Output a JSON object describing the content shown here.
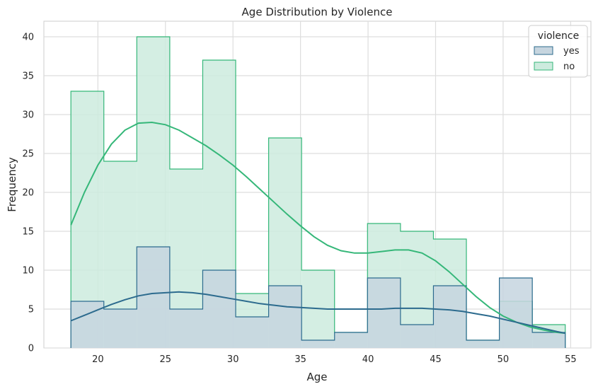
{
  "chart_data": {
    "type": "histogram",
    "title": "Age Distribution by Violence",
    "xlabel": "Age",
    "ylabel": "Frequency",
    "xlim": [
      16,
      56.5
    ],
    "ylim": [
      0,
      42
    ],
    "x_ticks": [
      20,
      25,
      30,
      35,
      40,
      45,
      50,
      55
    ],
    "y_ticks": [
      0,
      5,
      10,
      15,
      20,
      25,
      30,
      35,
      40
    ],
    "bin_edges": [
      18,
      20.44,
      22.88,
      25.32,
      27.76,
      30.2,
      32.64,
      35.08,
      37.52,
      39.96,
      42.4,
      44.84,
      47.28,
      49.72,
      52.16,
      54.6
    ],
    "grid": true,
    "legend": {
      "title": "violence",
      "placement": "top-right"
    },
    "series": [
      {
        "name": "no",
        "values": [
          33,
          24,
          40,
          23,
          37,
          7,
          27,
          10,
          2,
          16,
          15,
          14,
          1,
          6,
          3
        ],
        "color": "#35b779",
        "fill_color": "#cdebde",
        "kde": [
          [
            18,
            15.8
          ],
          [
            19,
            20
          ],
          [
            20,
            23.5
          ],
          [
            21,
            26.2
          ],
          [
            22,
            28
          ],
          [
            23,
            28.9
          ],
          [
            24,
            29
          ],
          [
            25,
            28.7
          ],
          [
            26,
            28
          ],
          [
            27,
            27
          ],
          [
            28,
            26
          ],
          [
            29,
            24.8
          ],
          [
            30,
            23.5
          ],
          [
            31,
            22
          ],
          [
            32,
            20.4
          ],
          [
            33,
            18.8
          ],
          [
            34,
            17.2
          ],
          [
            35,
            15.7
          ],
          [
            36,
            14.3
          ],
          [
            37,
            13.2
          ],
          [
            38,
            12.5
          ],
          [
            39,
            12.2
          ],
          [
            40,
            12.2
          ],
          [
            41,
            12.4
          ],
          [
            42,
            12.6
          ],
          [
            43,
            12.6
          ],
          [
            44,
            12.2
          ],
          [
            45,
            11.2
          ],
          [
            46,
            9.8
          ],
          [
            47,
            8.2
          ],
          [
            48,
            6.6
          ],
          [
            49,
            5.2
          ],
          [
            50,
            4.1
          ],
          [
            51,
            3.3
          ],
          [
            52,
            2.7
          ],
          [
            53,
            2.3
          ],
          [
            54,
            2
          ],
          [
            54.6,
            1.9
          ]
        ]
      },
      {
        "name": "yes",
        "values": [
          6,
          5,
          13,
          5,
          10,
          4,
          8,
          1,
          2,
          9,
          3,
          8,
          1,
          9,
          2
        ],
        "color": "#2c6b8e",
        "fill_color": "#c6d5df",
        "kde": [
          [
            18,
            3.5
          ],
          [
            19,
            4.2
          ],
          [
            20,
            4.9
          ],
          [
            21,
            5.6
          ],
          [
            22,
            6.2
          ],
          [
            23,
            6.7
          ],
          [
            24,
            7
          ],
          [
            25,
            7.1
          ],
          [
            26,
            7.2
          ],
          [
            27,
            7.1
          ],
          [
            28,
            6.9
          ],
          [
            29,
            6.6
          ],
          [
            30,
            6.3
          ],
          [
            31,
            6
          ],
          [
            32,
            5.7
          ],
          [
            33,
            5.5
          ],
          [
            34,
            5.3
          ],
          [
            35,
            5.2
          ],
          [
            36,
            5.1
          ],
          [
            37,
            5
          ],
          [
            38,
            5
          ],
          [
            39,
            5
          ],
          [
            40,
            5
          ],
          [
            41,
            5
          ],
          [
            42,
            5.1
          ],
          [
            43,
            5.1
          ],
          [
            44,
            5.1
          ],
          [
            45,
            5
          ],
          [
            46,
            4.9
          ],
          [
            47,
            4.7
          ],
          [
            48,
            4.4
          ],
          [
            49,
            4.1
          ],
          [
            50,
            3.7
          ],
          [
            51,
            3.3
          ],
          [
            52,
            2.9
          ],
          [
            53,
            2.5
          ],
          [
            54,
            2.1
          ],
          [
            54.6,
            1.9
          ]
        ]
      }
    ]
  }
}
